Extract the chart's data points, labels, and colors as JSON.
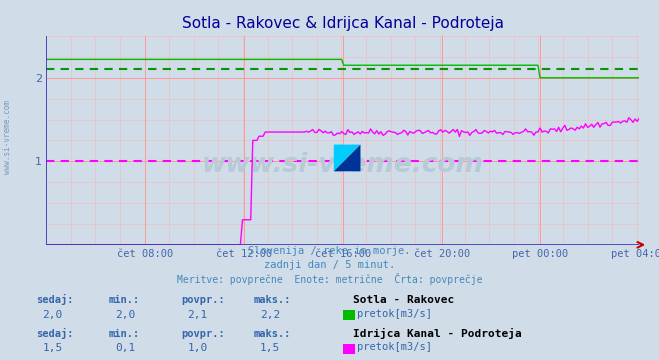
{
  "title": "Sotla - Rakovec & Idrijca Kanal - Podroteja",
  "title_color": "#000099",
  "bg_color": "#d0dce8",
  "plot_bg_color": "#d0dce8",
  "grid_color_major": "#ff9999",
  "grid_color_minor": "#f0c0c0",
  "x_label_color": "#4466aa",
  "subtitle_lines": [
    "Slovenija / reke in morje.",
    "zadnji dan / 5 minut.",
    "Meritve: povprečne  Enote: metrične  Črta: povprečje"
  ],
  "subtitle_color": "#4488bb",
  "xtick_labels": [
    "čet 08:00",
    "čet 12:00",
    "čet 16:00",
    "čet 20:00",
    "pet 00:00",
    "pet 04:00"
  ],
  "xtick_positions": [
    0.167,
    0.333,
    0.5,
    0.667,
    0.833,
    1.0
  ],
  "ylim": [
    0.0,
    2.5
  ],
  "xlim": [
    0.0,
    1.0
  ],
  "axis_color": "#3333bb",
  "arrow_color": "#cc0000",
  "watermark": "www.si-vreme.com",
  "watermark_color": "#b8cad8",
  "series1_color": "#00bb00",
  "series1_avg_color": "#009900",
  "series2_color": "#ff00ff",
  "series2_avg_color": "#cc00cc",
  "series1_label": "Sotla - Rakovec",
  "series2_label": "Idrijca Kanal - Podroteja",
  "unit_label": "pretok[m3/s]",
  "stats_labels": [
    "sedaj:",
    "min.:",
    "povpr.:",
    "maks.:"
  ],
  "stats_color": "#3366aa",
  "series1_stats": [
    "2,0",
    "2,0",
    "2,1",
    "2,2"
  ],
  "series2_stats": [
    "1,5",
    "0,1",
    "1,0",
    "1,5"
  ],
  "series1_avg_val": 2.1,
  "series2_avg_val": 1.0,
  "sidebar_text": "www.si-vreme.com",
  "sidebar_color": "#7799bb"
}
